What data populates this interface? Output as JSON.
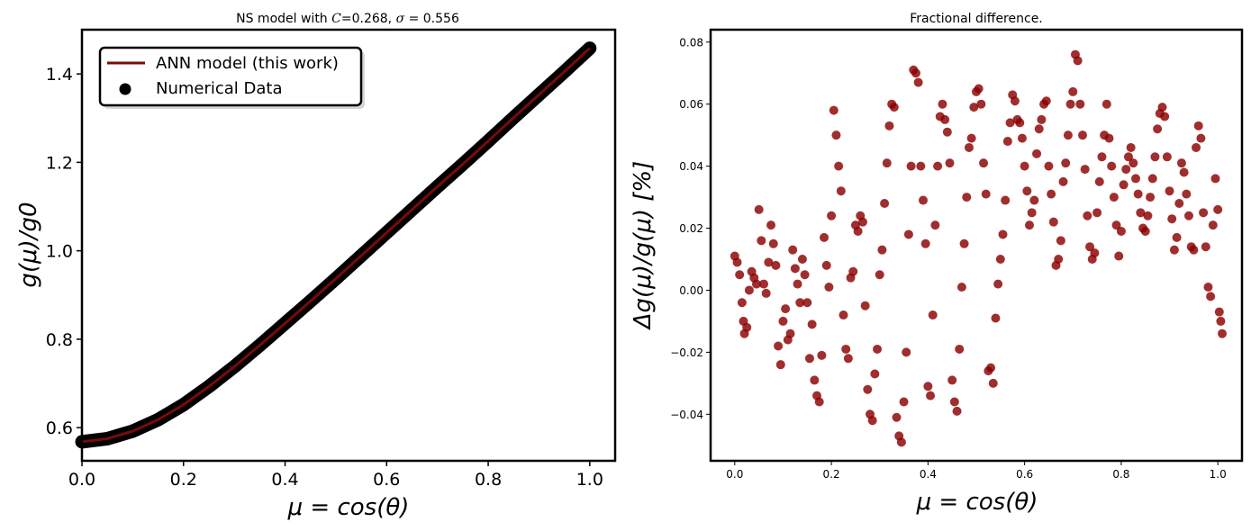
{
  "chart_data": [
    {
      "type": "line",
      "title": "NS model with C=0.268, σ = 0.556",
      "title_prefix": "NS model with ",
      "title_C": "C",
      "title_C_value": "=0.268, ",
      "title_sigma": "σ",
      "title_sigma_value": " = 0.556",
      "xlabel": "μ = cos(θ)",
      "ylabel": "g(μ)/g0",
      "xlim": [
        0.0,
        1.05
      ],
      "ylim": [
        0.525,
        1.5
      ],
      "xticks": [
        0.0,
        0.2,
        0.4,
        0.6,
        0.8,
        1.0
      ],
      "yticks": [
        0.6,
        0.8,
        1.0,
        1.2,
        1.4
      ],
      "xtick_labels": [
        "0.0",
        "0.2",
        "0.4",
        "0.6",
        "0.8",
        "1.0"
      ],
      "ytick_labels": [
        "0.6",
        "0.8",
        "1.0",
        "1.2",
        "1.4"
      ],
      "grid": false,
      "legend_position": "upper-left",
      "legend": [
        "ANN model (this work)",
        "Numerical Data"
      ],
      "series": [
        {
          "name": "ANN model (this work)",
          "style": "line",
          "color": "#7a0a0a",
          "x": [
            0.0,
            0.05,
            0.1,
            0.15,
            0.2,
            0.25,
            0.3,
            0.35,
            0.4,
            0.45,
            0.5,
            0.55,
            0.6,
            0.65,
            0.7,
            0.75,
            0.8,
            0.85,
            0.9,
            0.95,
            1.0
          ],
          "y": [
            0.568,
            0.575,
            0.592,
            0.618,
            0.652,
            0.693,
            0.738,
            0.786,
            0.836,
            0.886,
            0.937,
            0.989,
            1.041,
            1.093,
            1.145,
            1.196,
            1.248,
            1.301,
            1.353,
            1.405,
            1.458
          ]
        },
        {
          "name": "Numerical Data",
          "style": "scatter",
          "color": "#000000",
          "x": [
            0.0,
            0.05,
            0.1,
            0.15,
            0.2,
            0.25,
            0.3,
            0.35,
            0.4,
            0.45,
            0.5,
            0.55,
            0.6,
            0.65,
            0.7,
            0.75,
            0.8,
            0.85,
            0.9,
            0.95,
            1.0
          ],
          "y": [
            0.568,
            0.575,
            0.592,
            0.618,
            0.652,
            0.693,
            0.738,
            0.786,
            0.836,
            0.886,
            0.937,
            0.989,
            1.041,
            1.093,
            1.145,
            1.196,
            1.248,
            1.301,
            1.353,
            1.405,
            1.458
          ]
        }
      ]
    },
    {
      "type": "scatter",
      "title": "Fractional difference.",
      "xlabel": "μ = cos(θ)",
      "ylabel": "Δg(μ)/g(μ)  [%]",
      "xlim": [
        -0.05,
        1.05
      ],
      "ylim": [
        -0.055,
        0.084
      ],
      "xticks": [
        0.0,
        0.2,
        0.4,
        0.6,
        0.8,
        1.0
      ],
      "yticks": [
        -0.04,
        -0.02,
        0.0,
        0.02,
        0.04,
        0.06,
        0.08
      ],
      "xtick_labels": [
        "0.0",
        "0.2",
        "0.4",
        "0.6",
        "0.8",
        "1.0"
      ],
      "ytick_labels": [
        "−0.04",
        "−0.02",
        "0.00",
        "0.02",
        "0.04",
        "0.06",
        "0.08"
      ],
      "grid": false,
      "series": [
        {
          "color": "#8b0000",
          "points": [
            [
              0.0,
              0.011
            ],
            [
              0.005,
              0.009
            ],
            [
              0.01,
              0.005
            ],
            [
              0.015,
              -0.004
            ],
            [
              0.018,
              -0.01
            ],
            [
              0.02,
              -0.014
            ],
            [
              0.025,
              -0.012
            ],
            [
              0.03,
              0.0
            ],
            [
              0.035,
              0.006
            ],
            [
              0.04,
              0.004
            ],
            [
              0.045,
              0.002
            ],
            [
              0.05,
              0.026
            ],
            [
              0.055,
              0.016
            ],
            [
              0.06,
              0.002
            ],
            [
              0.065,
              -0.001
            ],
            [
              0.07,
              0.009
            ],
            [
              0.075,
              0.021
            ],
            [
              0.08,
              0.015
            ],
            [
              0.085,
              0.008
            ],
            [
              0.09,
              -0.018
            ],
            [
              0.095,
              -0.024
            ],
            [
              0.1,
              -0.01
            ],
            [
              0.105,
              -0.006
            ],
            [
              0.11,
              -0.016
            ],
            [
              0.115,
              -0.014
            ],
            [
              0.12,
              0.013
            ],
            [
              0.125,
              0.007
            ],
            [
              0.13,
              0.002
            ],
            [
              0.135,
              -0.004
            ],
            [
              0.14,
              0.01
            ],
            [
              0.145,
              0.005
            ],
            [
              0.15,
              -0.004
            ],
            [
              0.155,
              -0.022
            ],
            [
              0.16,
              -0.011
            ],
            [
              0.165,
              -0.029
            ],
            [
              0.17,
              -0.034
            ],
            [
              0.175,
              -0.036
            ],
            [
              0.18,
              -0.021
            ],
            [
              0.185,
              0.017
            ],
            [
              0.19,
              0.008
            ],
            [
              0.195,
              0.001
            ],
            [
              0.2,
              0.024
            ],
            [
              0.205,
              0.058
            ],
            [
              0.21,
              0.05
            ],
            [
              0.215,
              0.04
            ],
            [
              0.22,
              0.032
            ],
            [
              0.225,
              -0.008
            ],
            [
              0.23,
              -0.019
            ],
            [
              0.235,
              -0.022
            ],
            [
              0.24,
              0.004
            ],
            [
              0.245,
              0.006
            ],
            [
              0.25,
              0.021
            ],
            [
              0.255,
              0.019
            ],
            [
              0.26,
              0.024
            ],
            [
              0.265,
              0.022
            ],
            [
              0.27,
              -0.005
            ],
            [
              0.275,
              -0.032
            ],
            [
              0.28,
              -0.04
            ],
            [
              0.285,
              -0.042
            ],
            [
              0.29,
              -0.027
            ],
            [
              0.295,
              -0.019
            ],
            [
              0.3,
              0.005
            ],
            [
              0.305,
              0.013
            ],
            [
              0.31,
              0.028
            ],
            [
              0.315,
              0.041
            ],
            [
              0.32,
              0.053
            ],
            [
              0.325,
              0.06
            ],
            [
              0.33,
              0.059
            ],
            [
              0.335,
              -0.041
            ],
            [
              0.34,
              -0.047
            ],
            [
              0.345,
              -0.049
            ],
            [
              0.35,
              -0.036
            ],
            [
              0.355,
              -0.02
            ],
            [
              0.36,
              0.018
            ],
            [
              0.365,
              0.04
            ],
            [
              0.37,
              0.071
            ],
            [
              0.375,
              0.07
            ],
            [
              0.38,
              0.067
            ],
            [
              0.385,
              0.04
            ],
            [
              0.39,
              0.029
            ],
            [
              0.395,
              0.015
            ],
            [
              0.4,
              -0.031
            ],
            [
              0.405,
              -0.034
            ],
            [
              0.41,
              -0.008
            ],
            [
              0.415,
              0.021
            ],
            [
              0.42,
              0.04
            ],
            [
              0.425,
              0.056
            ],
            [
              0.43,
              0.06
            ],
            [
              0.435,
              0.055
            ],
            [
              0.44,
              0.051
            ],
            [
              0.445,
              0.041
            ],
            [
              0.45,
              -0.029
            ],
            [
              0.455,
              -0.036
            ],
            [
              0.46,
              -0.039
            ],
            [
              0.465,
              -0.019
            ],
            [
              0.47,
              0.001
            ],
            [
              0.475,
              0.015
            ],
            [
              0.48,
              0.03
            ],
            [
              0.485,
              0.046
            ],
            [
              0.49,
              0.049
            ],
            [
              0.495,
              0.059
            ],
            [
              0.5,
              0.064
            ],
            [
              0.505,
              0.065
            ],
            [
              0.51,
              0.06
            ],
            [
              0.515,
              0.041
            ],
            [
              0.52,
              0.031
            ],
            [
              0.525,
              -0.026
            ],
            [
              0.53,
              -0.025
            ],
            [
              0.535,
              -0.03
            ],
            [
              0.54,
              -0.009
            ],
            [
              0.545,
              0.002
            ],
            [
              0.55,
              0.01
            ],
            [
              0.555,
              0.018
            ],
            [
              0.56,
              0.029
            ],
            [
              0.565,
              0.048
            ],
            [
              0.57,
              0.054
            ],
            [
              0.575,
              0.063
            ],
            [
              0.58,
              0.061
            ],
            [
              0.585,
              0.055
            ],
            [
              0.59,
              0.054
            ],
            [
              0.595,
              0.049
            ],
            [
              0.6,
              0.04
            ],
            [
              0.605,
              0.032
            ],
            [
              0.61,
              0.021
            ],
            [
              0.615,
              0.025
            ],
            [
              0.62,
              0.029
            ],
            [
              0.625,
              0.044
            ],
            [
              0.63,
              0.052
            ],
            [
              0.635,
              0.055
            ],
            [
              0.64,
              0.06
            ],
            [
              0.645,
              0.061
            ],
            [
              0.65,
              0.04
            ],
            [
              0.655,
              0.031
            ],
            [
              0.66,
              0.022
            ],
            [
              0.665,
              0.008
            ],
            [
              0.67,
              0.01
            ],
            [
              0.675,
              0.016
            ],
            [
              0.68,
              0.035
            ],
            [
              0.685,
              0.041
            ],
            [
              0.69,
              0.05
            ],
            [
              0.695,
              0.06
            ],
            [
              0.7,
              0.064
            ],
            [
              0.705,
              0.076
            ],
            [
              0.71,
              0.074
            ],
            [
              0.715,
              0.06
            ],
            [
              0.72,
              0.05
            ],
            [
              0.725,
              0.039
            ],
            [
              0.73,
              0.024
            ],
            [
              0.735,
              0.014
            ],
            [
              0.74,
              0.01
            ],
            [
              0.745,
              0.012
            ],
            [
              0.75,
              0.025
            ],
            [
              0.755,
              0.035
            ],
            [
              0.76,
              0.043
            ],
            [
              0.765,
              0.05
            ],
            [
              0.77,
              0.06
            ],
            [
              0.775,
              0.049
            ],
            [
              0.78,
              0.04
            ],
            [
              0.785,
              0.03
            ],
            [
              0.79,
              0.021
            ],
            [
              0.795,
              0.011
            ],
            [
              0.8,
              0.019
            ],
            [
              0.805,
              0.034
            ],
            [
              0.81,
              0.039
            ],
            [
              0.815,
              0.043
            ],
            [
              0.82,
              0.046
            ],
            [
              0.825,
              0.041
            ],
            [
              0.83,
              0.036
            ],
            [
              0.835,
              0.031
            ],
            [
              0.84,
              0.025
            ],
            [
              0.845,
              0.02
            ],
            [
              0.85,
              0.019
            ],
            [
              0.855,
              0.024
            ],
            [
              0.86,
              0.03
            ],
            [
              0.865,
              0.036
            ],
            [
              0.87,
              0.043
            ],
            [
              0.875,
              0.052
            ],
            [
              0.88,
              0.057
            ],
            [
              0.885,
              0.059
            ],
            [
              0.89,
              0.056
            ],
            [
              0.895,
              0.043
            ],
            [
              0.9,
              0.032
            ],
            [
              0.905,
              0.023
            ],
            [
              0.91,
              0.013
            ],
            [
              0.915,
              0.017
            ],
            [
              0.92,
              0.028
            ],
            [
              0.925,
              0.041
            ],
            [
              0.93,
              0.038
            ],
            [
              0.935,
              0.031
            ],
            [
              0.94,
              0.024
            ],
            [
              0.945,
              0.014
            ],
            [
              0.95,
              0.013
            ],
            [
              0.955,
              0.046
            ],
            [
              0.96,
              0.053
            ],
            [
              0.965,
              0.049
            ],
            [
              0.97,
              0.025
            ],
            [
              0.975,
              0.014
            ],
            [
              0.98,
              0.001
            ],
            [
              0.985,
              -0.002
            ],
            [
              0.99,
              0.021
            ],
            [
              0.995,
              0.036
            ],
            [
              1.0,
              0.026
            ],
            [
              1.003,
              -0.007
            ],
            [
              1.006,
              -0.01
            ],
            [
              1.009,
              -0.014
            ]
          ]
        }
      ]
    }
  ]
}
